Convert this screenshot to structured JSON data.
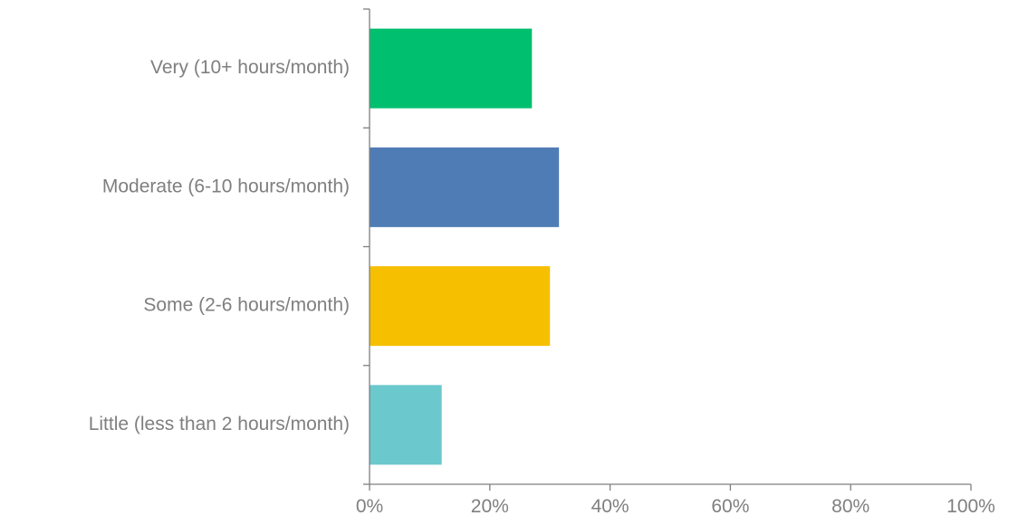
{
  "chart_data": {
    "type": "bar",
    "orientation": "horizontal",
    "categories": [
      "Very (10+ hours/month)",
      "Moderate (6-10 hours/month)",
      "Some (2-6 hours/month)",
      "Little (less than 2 hours/month)"
    ],
    "values": [
      27,
      31.5,
      30,
      12
    ],
    "value_unit": "%",
    "colors": [
      "#00bf6f",
      "#507cb6",
      "#f6bf00",
      "#6bc8cd"
    ],
    "xlim": [
      0,
      100
    ],
    "xticks": [
      "0%",
      "20%",
      "40%",
      "60%",
      "80%",
      "100%"
    ],
    "grid": false,
    "legend": "none",
    "title": "",
    "xlabel": "",
    "ylabel": ""
  }
}
